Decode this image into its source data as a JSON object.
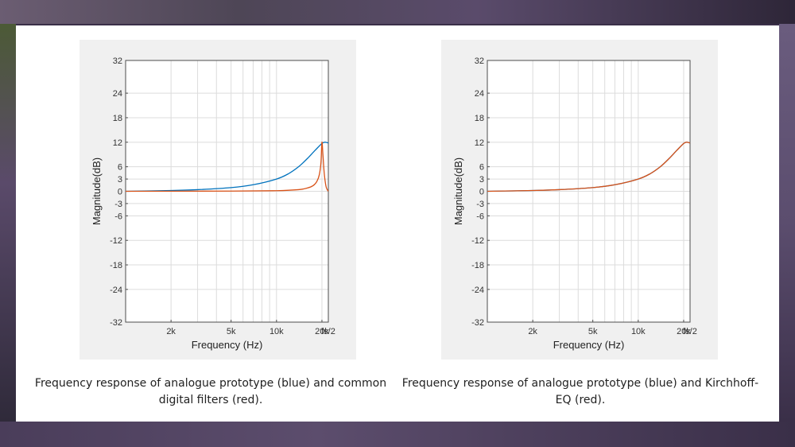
{
  "colors": {
    "blue": "#0072BD",
    "red": "#D95319"
  },
  "chart_data": [
    {
      "type": "line",
      "xlabel": "Frequency (Hz)",
      "ylabel": "Magnitude(dB)",
      "xscale": "log",
      "xlim": [
        1000,
        22050
      ],
      "ylim": [
        -32,
        32
      ],
      "yticks": [
        32,
        24,
        18,
        12,
        6,
        3,
        0,
        -3,
        -6,
        -12,
        -18,
        -24,
        -32
      ],
      "xticks": [
        {
          "value": 2000,
          "label": "2k"
        },
        {
          "value": 5000,
          "label": "5k"
        },
        {
          "value": 10000,
          "label": "10k"
        },
        {
          "value": 20000,
          "label": "20k"
        },
        {
          "value": 22050,
          "label": "fs/2"
        }
      ],
      "grid": true,
      "series": [
        {
          "name": "analogue prototype",
          "color": "blue",
          "x": [
            1000,
            2000,
            3000,
            5000,
            7000,
            10000,
            12000,
            14000,
            16000,
            18000,
            20000,
            21000,
            22050
          ],
          "y": [
            0.0,
            0.2,
            0.4,
            0.9,
            1.6,
            3.0,
            4.3,
            6.0,
            8.0,
            10.0,
            11.7,
            12.0,
            11.8
          ]
        },
        {
          "name": "common digital filters",
          "color": "red",
          "x": [
            1000,
            5000,
            10000,
            14000,
            16000,
            17500,
            18500,
            19200,
            19700,
            20000,
            20300,
            20700,
            21200,
            21600,
            22050
          ],
          "y": [
            0.0,
            0.05,
            0.15,
            0.4,
            0.8,
            1.4,
            2.4,
            4.0,
            7.0,
            12.0,
            9.0,
            4.5,
            1.5,
            0.5,
            0.0
          ]
        }
      ],
      "caption": "Frequency response of analogue prototype (blue) and common digital filters (red)."
    },
    {
      "type": "line",
      "xlabel": "Frequency (Hz)",
      "ylabel": "Magnitude(dB)",
      "xscale": "log",
      "xlim": [
        1000,
        22050
      ],
      "ylim": [
        -32,
        32
      ],
      "yticks": [
        32,
        24,
        18,
        12,
        6,
        3,
        0,
        -3,
        -6,
        -12,
        -18,
        -24,
        -32
      ],
      "xticks": [
        {
          "value": 2000,
          "label": "2k"
        },
        {
          "value": 5000,
          "label": "5k"
        },
        {
          "value": 10000,
          "label": "10k"
        },
        {
          "value": 20000,
          "label": "20k"
        },
        {
          "value": 22050,
          "label": "fs/2"
        }
      ],
      "grid": true,
      "series": [
        {
          "name": "analogue prototype",
          "color": "blue",
          "x": [
            1000,
            2000,
            3000,
            5000,
            7000,
            10000,
            12000,
            14000,
            16000,
            18000,
            20000,
            21000,
            22050
          ],
          "y": [
            0.0,
            0.2,
            0.4,
            0.9,
            1.6,
            3.0,
            4.3,
            6.0,
            8.0,
            10.0,
            11.7,
            12.0,
            11.8
          ]
        },
        {
          "name": "Kirchhoff-EQ",
          "color": "red",
          "x": [
            1000,
            2000,
            3000,
            5000,
            7000,
            10000,
            12000,
            14000,
            16000,
            18000,
            20000,
            21000,
            22050
          ],
          "y": [
            0.0,
            0.2,
            0.4,
            0.9,
            1.6,
            3.0,
            4.3,
            6.0,
            8.0,
            10.0,
            11.7,
            12.0,
            11.8
          ]
        }
      ],
      "caption": "Frequency response of analogue prototype (blue) and Kirchhoff-EQ (red)."
    }
  ]
}
